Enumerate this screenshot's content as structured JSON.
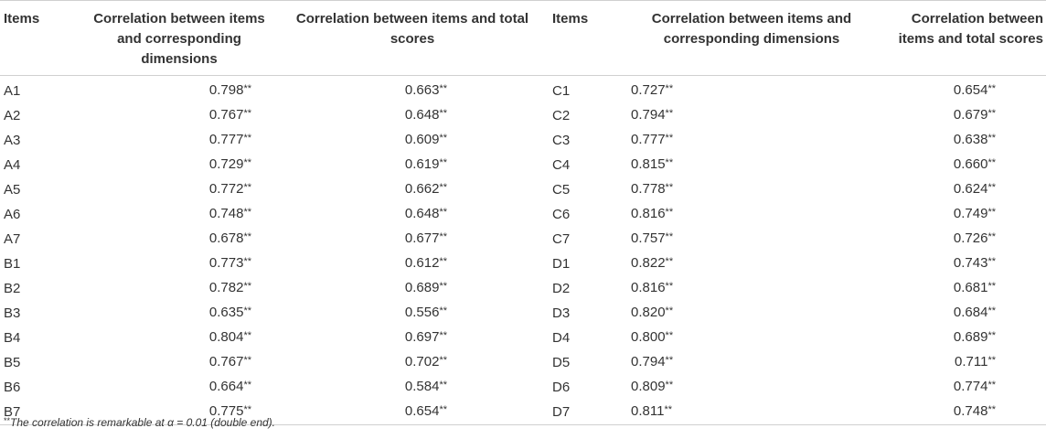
{
  "table": {
    "headers": [
      "Items",
      "Correlation between items and corresponding dimensions",
      "Correlation between items and total scores",
      "Items",
      "Correlation between items and corresponding dimensions",
      "Correlation between items and total scores"
    ],
    "significance_marker": "**",
    "rows": [
      [
        "A1",
        "0.798",
        "0.663",
        "C1",
        "0.727",
        "0.654"
      ],
      [
        "A2",
        "0.767",
        "0.648",
        "C2",
        "0.794",
        "0.679"
      ],
      [
        "A3",
        "0.777",
        "0.609",
        "C3",
        "0.777",
        "0.638"
      ],
      [
        "A4",
        "0.729",
        "0.619",
        "C4",
        "0.815",
        "0.660"
      ],
      [
        "A5",
        "0.772",
        "0.662",
        "C5",
        "0.778",
        "0.624"
      ],
      [
        "A6",
        "0.748",
        "0.648",
        "C6",
        "0.816",
        "0.749"
      ],
      [
        "A7",
        "0.678",
        "0.677",
        "C7",
        "0.757",
        "0.726"
      ],
      [
        "B1",
        "0.773",
        "0.612",
        "D1",
        "0.822",
        "0.743"
      ],
      [
        "B2",
        "0.782",
        "0.689",
        "D2",
        "0.816",
        "0.681"
      ],
      [
        "B3",
        "0.635",
        "0.556",
        "D3",
        "0.820",
        "0.684"
      ],
      [
        "B4",
        "0.804",
        "0.697",
        "D4",
        "0.800",
        "0.689"
      ],
      [
        "B5",
        "0.767",
        "0.702",
        "D5",
        "0.794",
        "0.711"
      ],
      [
        "B6",
        "0.664",
        "0.584",
        "D6",
        "0.809",
        "0.774"
      ],
      [
        "B7",
        "0.775",
        "0.654",
        "D7",
        "0.811",
        "0.748"
      ]
    ]
  },
  "footnote": {
    "marker": "**",
    "text": "The correlation is remarkable at α = 0.01 (double end)."
  }
}
